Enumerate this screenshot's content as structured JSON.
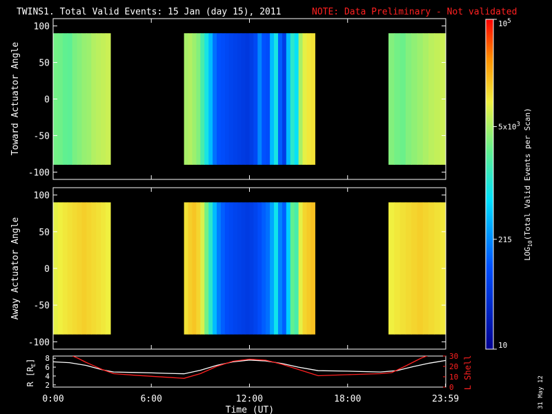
{
  "header": {
    "title": "TWINS1. Total Valid Events: 15 Jan (day  15), 2011",
    "note": "NOTE: Data Preliminary - Not validated",
    "note_color": "#ff2020"
  },
  "stamp": "31 May 12",
  "colorbar": {
    "label_main": "LOG",
    "label_sub": "10",
    "label_rest": "(Total Valid Events per Scan)",
    "ticks": [
      {
        "value": 100000,
        "base": "10",
        "exp": "5"
      },
      {
        "value": 5000,
        "base": "5x10",
        "exp": "3"
      },
      {
        "value": 215,
        "base": "215",
        "exp": ""
      },
      {
        "value": 10,
        "base": "10",
        "exp": ""
      }
    ],
    "range": [
      10,
      100000
    ],
    "scale": "log"
  },
  "chart_data": [
    {
      "type": "heatmap",
      "ylabel": "Toward Actuator Angle",
      "ylim": [
        -110,
        110
      ],
      "yticks": [
        100,
        50,
        0,
        -50,
        -100
      ],
      "xlim_hours": [
        0,
        24
      ],
      "data_angle_range": [
        -90,
        90
      ],
      "segments": [
        {
          "start_hour": 0.0,
          "end_hour": 3.5,
          "values": [
            3000,
            2900,
            2500,
            2400,
            3200,
            3600,
            4200,
            4500,
            5500,
            6000,
            6500,
            7000
          ]
        },
        {
          "start_hour": 8.0,
          "end_hour": 16.0,
          "values": [
            5000,
            5500,
            4500,
            3500,
            1800,
            900,
            400,
            150,
            100,
            90,
            80,
            70,
            65,
            60,
            55,
            50,
            60,
            80,
            200,
            100,
            90,
            400,
            900,
            120,
            60,
            400,
            1200,
            700,
            5000,
            9000,
            11000,
            12000
          ]
        },
        {
          "start_hour": 20.5,
          "end_hour": 24.0,
          "values": [
            3500,
            3000,
            2800,
            3500,
            4000,
            4500,
            5200,
            6000,
            6500,
            7000
          ]
        }
      ]
    },
    {
      "type": "heatmap",
      "ylabel": "Away Actuator Angle",
      "ylim": [
        -110,
        110
      ],
      "yticks": [
        100,
        50,
        0,
        -50,
        -100
      ],
      "xlim_hours": [
        0,
        24
      ],
      "data_angle_range": [
        -90,
        90
      ],
      "segments": [
        {
          "start_hour": 0.0,
          "end_hour": 3.5,
          "values": [
            9000,
            10000,
            11000,
            12000,
            13000,
            14000,
            15000,
            14000,
            13000,
            12000,
            11000,
            10000
          ]
        },
        {
          "start_hour": 8.0,
          "end_hour": 16.0,
          "values": [
            12000,
            15000,
            17000,
            14000,
            8000,
            3000,
            1200,
            400,
            180,
            120,
            90,
            80,
            70,
            65,
            60,
            55,
            60,
            70,
            90,
            120,
            150,
            300,
            800,
            200,
            120,
            500,
            2500,
            1800,
            9000,
            14000,
            16000,
            18000
          ]
        },
        {
          "start_hour": 20.5,
          "end_hour": 24.0,
          "values": [
            10000,
            11000,
            12000,
            13000,
            14000,
            15000,
            14000,
            13000,
            12000,
            11000
          ]
        }
      ]
    },
    {
      "type": "line",
      "xlabel": "Time (UT)",
      "xticks": [
        "0:00",
        "6:00",
        "12:00",
        "18:00",
        "23:59"
      ],
      "xtick_hours": [
        0,
        6,
        12,
        18,
        23.983
      ],
      "xlim_hours": [
        0,
        24
      ],
      "left_axis": {
        "label": "R [R",
        "label_sub": "E",
        "label_end": "]",
        "ticks": [
          "8",
          "6",
          "4",
          "2"
        ],
        "range": [
          1.5,
          8.5
        ],
        "color": "#ffffff"
      },
      "right_axis": {
        "label": "L Shell",
        "ticks": [
          "30",
          "20",
          "10",
          "0"
        ],
        "range": [
          0,
          30
        ],
        "color": "#ff2020"
      },
      "series": [
        {
          "axis": "left",
          "color": "#ffffff",
          "x": [
            0,
            1,
            2,
            3,
            3.7,
            5,
            6,
            7,
            8,
            9,
            10,
            11,
            12,
            13,
            14,
            15,
            16.2,
            18,
            20,
            21,
            22,
            23,
            24
          ],
          "y": [
            7.2,
            7.0,
            6.4,
            5.4,
            4.9,
            4.8,
            4.7,
            4.6,
            4.5,
            5.3,
            6.4,
            7.2,
            7.6,
            7.4,
            6.8,
            6.0,
            5.2,
            5.1,
            4.9,
            5.2,
            6.1,
            6.9,
            7.5
          ]
        },
        {
          "axis": "right",
          "color": "#ff2020",
          "x": [
            1.2,
            1.5,
            2,
            3,
            3.7,
            5,
            6,
            7,
            8,
            9,
            10,
            11,
            12,
            13,
            14,
            15,
            16.2,
            18,
            20,
            20.7,
            21.5,
            22.5,
            23
          ],
          "y": [
            30,
            28,
            24,
            17,
            13,
            11.5,
            10.5,
            9.5,
            8.5,
            13,
            20,
            25,
            27,
            26,
            22,
            17,
            11,
            12,
            13,
            14,
            20,
            28,
            31
          ]
        }
      ]
    }
  ]
}
